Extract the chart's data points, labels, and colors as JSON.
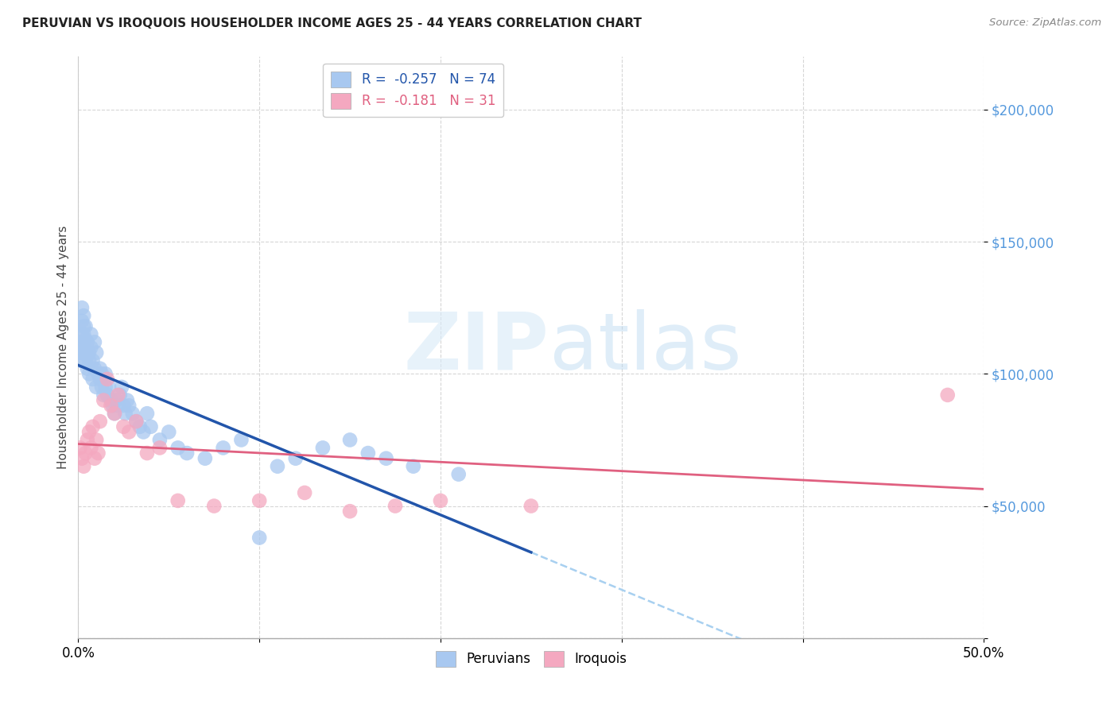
{
  "title": "PERUVIAN VS IROQUOIS HOUSEHOLDER INCOME AGES 25 - 44 YEARS CORRELATION CHART",
  "source": "Source: ZipAtlas.com",
  "ylabel": "Householder Income Ages 25 - 44 years",
  "xlim": [
    0.0,
    0.5
  ],
  "ylim": [
    0,
    220000
  ],
  "yticks": [
    0,
    50000,
    100000,
    150000,
    200000
  ],
  "ytick_labels": [
    "",
    "$50,000",
    "$100,000",
    "$150,000",
    "$200,000"
  ],
  "xticks": [
    0.0,
    0.1,
    0.2,
    0.3,
    0.4,
    0.5
  ],
  "xtick_labels": [
    "0.0%",
    "",
    "",
    "",
    "",
    "50.0%"
  ],
  "peruvian_color": "#a8c8f0",
  "iroquois_color": "#f4a8c0",
  "trend_peruvian_color": "#2255aa",
  "trend_iroquois_color": "#e06080",
  "trend_ext_color": "#a8d0f0",
  "watermark_zip": "ZIP",
  "watermark_atlas": "atlas",
  "peruvian_x": [
    0.001,
    0.001,
    0.001,
    0.002,
    0.002,
    0.002,
    0.002,
    0.002,
    0.003,
    0.003,
    0.003,
    0.003,
    0.004,
    0.004,
    0.004,
    0.004,
    0.005,
    0.005,
    0.005,
    0.006,
    0.006,
    0.006,
    0.007,
    0.007,
    0.008,
    0.008,
    0.009,
    0.009,
    0.01,
    0.01,
    0.011,
    0.012,
    0.012,
    0.013,
    0.013,
    0.014,
    0.014,
    0.015,
    0.015,
    0.016,
    0.017,
    0.018,
    0.019,
    0.02,
    0.021,
    0.022,
    0.023,
    0.024,
    0.025,
    0.026,
    0.027,
    0.028,
    0.03,
    0.032,
    0.034,
    0.036,
    0.038,
    0.04,
    0.045,
    0.05,
    0.055,
    0.06,
    0.07,
    0.08,
    0.09,
    0.1,
    0.11,
    0.12,
    0.135,
    0.15,
    0.16,
    0.17,
    0.185,
    0.21
  ],
  "peruvian_y": [
    110000,
    105000,
    108000,
    115000,
    112000,
    108000,
    120000,
    125000,
    118000,
    115000,
    122000,
    110000,
    113000,
    108000,
    118000,
    105000,
    112000,
    107000,
    102000,
    108000,
    105000,
    100000,
    115000,
    110000,
    105000,
    98000,
    102000,
    112000,
    95000,
    108000,
    100000,
    98000,
    102000,
    95000,
    100000,
    92000,
    98000,
    95000,
    100000,
    92000,
    95000,
    90000,
    88000,
    85000,
    90000,
    88000,
    92000,
    95000,
    88000,
    85000,
    90000,
    88000,
    85000,
    82000,
    80000,
    78000,
    85000,
    80000,
    75000,
    78000,
    72000,
    70000,
    68000,
    72000,
    75000,
    38000,
    65000,
    68000,
    72000,
    75000,
    70000,
    68000,
    65000,
    62000
  ],
  "iroquois_x": [
    0.001,
    0.002,
    0.003,
    0.004,
    0.005,
    0.006,
    0.007,
    0.008,
    0.009,
    0.01,
    0.011,
    0.012,
    0.014,
    0.016,
    0.018,
    0.02,
    0.022,
    0.025,
    0.028,
    0.032,
    0.038,
    0.045,
    0.055,
    0.075,
    0.1,
    0.125,
    0.15,
    0.175,
    0.2,
    0.25,
    0.48
  ],
  "iroquois_y": [
    72000,
    68000,
    65000,
    70000,
    75000,
    78000,
    72000,
    80000,
    68000,
    75000,
    70000,
    82000,
    90000,
    98000,
    88000,
    85000,
    92000,
    80000,
    78000,
    82000,
    70000,
    72000,
    52000,
    50000,
    52000,
    55000,
    48000,
    50000,
    52000,
    50000,
    92000
  ],
  "peruvian_label": "Peruvians",
  "iroquois_label": "Iroquois",
  "r_peruvian": "-0.257",
  "n_peruvian": "74",
  "r_iroquois": "-0.181",
  "n_iroquois": "31"
}
